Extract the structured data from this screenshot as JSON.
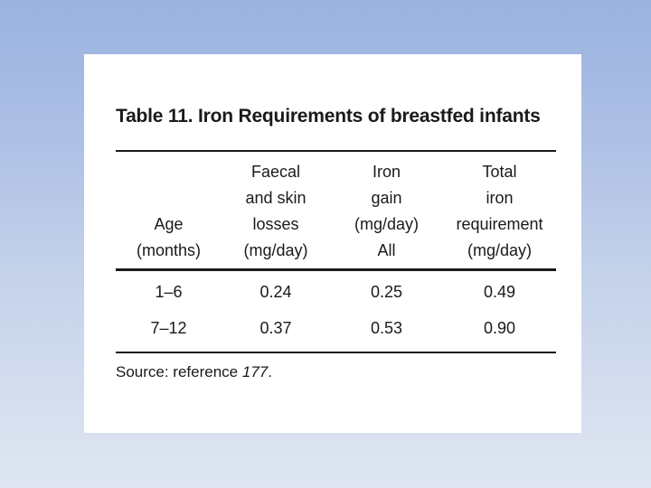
{
  "slide": {
    "title": "Table 11. Iron Requirements of breastfed infants",
    "source": {
      "prefix": "Source: reference ",
      "reference": "177",
      "suffix": "."
    }
  },
  "table": {
    "columns": [
      {
        "header_lines": [
          "",
          "",
          "Age",
          "(months)"
        ]
      },
      {
        "header_lines": [
          "Faecal",
          "and skin",
          "losses",
          "(mg/day)"
        ]
      },
      {
        "header_lines": [
          "Iron",
          "gain",
          "(mg/day)",
          "All"
        ]
      },
      {
        "header_lines": [
          "Total",
          "iron",
          "requirement",
          "(mg/day)"
        ]
      }
    ],
    "rows": [
      [
        "1–6",
        "0.24",
        "0.25",
        "0.49"
      ],
      [
        "7–12",
        "0.37",
        "0.53",
        "0.90"
      ]
    ]
  },
  "chart_data": {
    "type": "table",
    "title": "Table 11. Iron Requirements of breastfed infants",
    "columns": [
      "Age (months)",
      "Faecal and skin losses (mg/day)",
      "Iron gain (mg/day) All",
      "Total iron requirement (mg/day)"
    ],
    "rows": [
      [
        "1–6",
        0.24,
        0.25,
        0.49
      ],
      [
        "7–12",
        0.37,
        0.53,
        0.9
      ]
    ],
    "source": "Source: reference 177."
  },
  "colors": {
    "background_top": "#99b3e0",
    "background_bottom": "#dfe6f2",
    "panel": "#ffffff",
    "text": "#1a1a1a",
    "rule": "#1a1a1a"
  }
}
